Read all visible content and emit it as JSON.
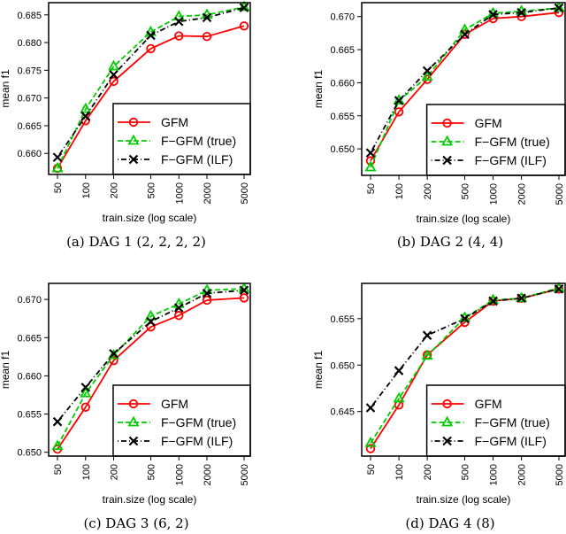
{
  "chart_data": [
    {
      "type": "line",
      "caption": "(a) DAG 1 (2, 2, 2, 2)",
      "xlabel": "train.size (log scale)",
      "ylabel": "mean f1",
      "x": [
        50,
        100,
        200,
        500,
        1000,
        2000,
        5000
      ],
      "x_tick_labels": [
        "50",
        "100",
        "200",
        "500",
        "1000",
        "2000",
        "5000"
      ],
      "xscale": "log",
      "ylim": [
        0.6562,
        0.6872
      ],
      "y_ticks": [
        "0.660",
        "0.665",
        "0.670",
        "0.675",
        "0.680",
        "0.685"
      ],
      "legend_position": "bottom-right",
      "series": [
        {
          "name": "GFM",
          "values": [
            0.6573,
            0.6659,
            0.673,
            0.6789,
            0.6812,
            0.6811,
            0.683
          ]
        },
        {
          "name": "F−GFM (true)",
          "values": [
            0.6573,
            0.668,
            0.6757,
            0.6819,
            0.6847,
            0.685,
            0.6864
          ]
        },
        {
          "name": "F−GFM (ILF)",
          "values": [
            0.6593,
            0.6667,
            0.6742,
            0.6813,
            0.6838,
            0.6845,
            0.6863
          ]
        }
      ]
    },
    {
      "type": "line",
      "caption": "(b) DAG 2 (4, 4)",
      "xlabel": "train.size (log scale)",
      "ylabel": "mean f1",
      "x": [
        50,
        100,
        200,
        500,
        1000,
        2000,
        5000
      ],
      "x_tick_labels": [
        "50",
        "100",
        "200",
        "500",
        "1000",
        "2000",
        "5000"
      ],
      "xscale": "log",
      "ylim": [
        0.646,
        0.6721
      ],
      "y_ticks": [
        "0.650",
        "0.655",
        "0.660",
        "0.665",
        "0.670"
      ],
      "legend_position": "bottom-right",
      "series": [
        {
          "name": "GFM",
          "values": [
            0.6482,
            0.6556,
            0.6605,
            0.6673,
            0.6697,
            0.67,
            0.6706
          ]
        },
        {
          "name": "F−GFM (true)",
          "values": [
            0.6472,
            0.6573,
            0.6609,
            0.668,
            0.6705,
            0.6708,
            0.6713
          ]
        },
        {
          "name": "F−GFM (ILF)",
          "values": [
            0.6494,
            0.6573,
            0.6618,
            0.6673,
            0.6703,
            0.6706,
            0.6713
          ]
        }
      ]
    },
    {
      "type": "line",
      "caption": "(c) DAG 3 (6, 2)",
      "xlabel": "train.size (log scale)",
      "ylabel": "mean f1",
      "x": [
        50,
        100,
        200,
        500,
        1000,
        2000,
        5000
      ],
      "x_tick_labels": [
        "50",
        "100",
        "200",
        "500",
        "1000",
        "2000",
        "5000"
      ],
      "xscale": "log",
      "ylim": [
        0.6495,
        0.6721
      ],
      "y_ticks": [
        "0.650",
        "0.655",
        "0.660",
        "0.665",
        "0.670"
      ],
      "legend_position": "bottom-right",
      "series": [
        {
          "name": "GFM",
          "values": [
            0.6504,
            0.6559,
            0.662,
            0.6664,
            0.6679,
            0.6699,
            0.6702
          ]
        },
        {
          "name": "F−GFM (true)",
          "values": [
            0.6508,
            0.6577,
            0.6627,
            0.6678,
            0.6694,
            0.6712,
            0.6714
          ]
        },
        {
          "name": "F−GFM (ILF)",
          "values": [
            0.654,
            0.6585,
            0.6629,
            0.6671,
            0.6689,
            0.6708,
            0.6712
          ]
        }
      ]
    },
    {
      "type": "line",
      "caption": "(d) DAG 4 (8)",
      "xlabel": "train.size (log scale)",
      "ylabel": "mean f1",
      "x": [
        50,
        100,
        200,
        500,
        1000,
        2000,
        5000
      ],
      "x_tick_labels": [
        "50",
        "100",
        "200",
        "500",
        "1000",
        "2000",
        "5000"
      ],
      "xscale": "log",
      "ylim": [
        0.6402,
        0.6588
      ],
      "y_ticks": [
        "0.645",
        "0.650",
        "0.655"
      ],
      "legend_position": "bottom-right",
      "series": [
        {
          "name": "GFM",
          "values": [
            0.641,
            0.6457,
            0.6511,
            0.6546,
            0.6569,
            0.6572,
            0.6582
          ]
        },
        {
          "name": "F−GFM (true)",
          "values": [
            0.6416,
            0.6464,
            0.651,
            0.6551,
            0.657,
            0.6572,
            0.6583
          ]
        },
        {
          "name": "F−GFM (ILF)",
          "values": [
            0.6454,
            0.6494,
            0.6532,
            0.655,
            0.6569,
            0.6572,
            0.6582
          ]
        }
      ]
    }
  ],
  "series_style": [
    {
      "color": "#ff0000",
      "marker": "circle",
      "dash": "solid"
    },
    {
      "color": "#00cc00",
      "marker": "triangle",
      "dash": "dashed"
    },
    {
      "color": "#000000",
      "marker": "x",
      "dash": "dotdash"
    }
  ]
}
